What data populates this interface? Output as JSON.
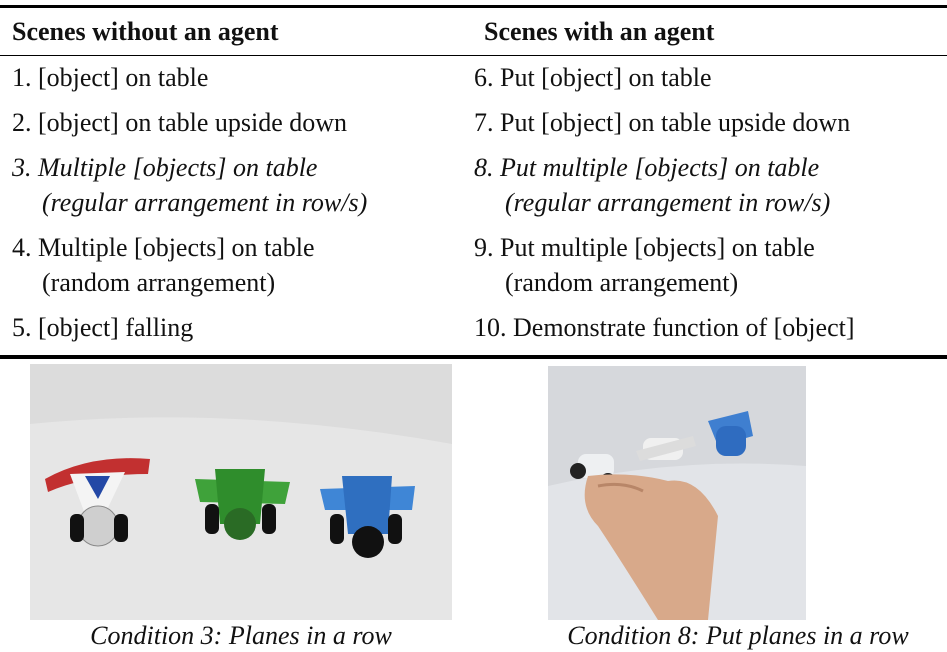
{
  "table": {
    "header": [
      "Scenes without an agent",
      "Scenes with an agent"
    ],
    "rows": [
      {
        "italic": false,
        "cells": [
          [
            "1. [object] on table"
          ],
          [
            "6. Put [object] on table"
          ]
        ]
      },
      {
        "italic": false,
        "cells": [
          [
            "2. [object] on table upside down"
          ],
          [
            "7. Put [object] on table upside down"
          ]
        ]
      },
      {
        "italic": true,
        "cells": [
          [
            "3. Multiple [objects] on table",
            "(regular arrangement in row/s)"
          ],
          [
            "8. Put multiple [objects] on table",
            "(regular arrangement in row/s)"
          ]
        ]
      },
      {
        "italic": false,
        "cells": [
          [
            "4. Multiple [objects] on table",
            "(random arrangement)"
          ],
          [
            "9. Put multiple [objects] on table",
            "(random arrangement)"
          ]
        ]
      },
      {
        "italic": false,
        "cells": [
          [
            "5. [object] falling"
          ],
          [
            "10. Demonstrate function of [object]"
          ]
        ]
      }
    ]
  },
  "figures": [
    {
      "caption": "Condition 3: Planes in a row"
    },
    {
      "caption": "Condition 8: Put planes in a row"
    }
  ]
}
